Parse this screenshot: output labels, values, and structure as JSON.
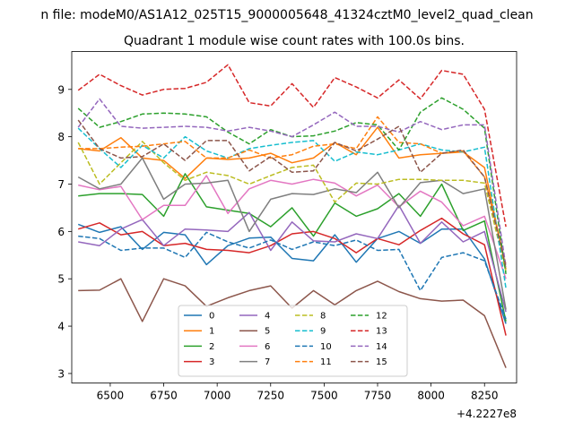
{
  "chart_data": {
    "type": "line",
    "suptitle": "n file: modeM0/AS1A12_025T15_9000005648_41324cztM0_level2_quad_clean",
    "title": "Quadrant 1 module wise count rates with 100.0s bins.",
    "xlabel": "",
    "ylabel": "",
    "x_offset_label": "+4.2227e8",
    "xlim": [
      6320,
      8400
    ],
    "ylim": [
      2.8,
      9.8
    ],
    "xticks": [
      6500,
      6750,
      7000,
      7250,
      7500,
      7750,
      8000,
      8250
    ],
    "yticks": [
      3,
      4,
      5,
      6,
      7,
      8,
      9
    ],
    "legend_position": "bottom-center",
    "x": [
      6350,
      6450,
      6550,
      6650,
      6750,
      6850,
      6950,
      7050,
      7150,
      7250,
      7350,
      7450,
      7550,
      7650,
      7750,
      7850,
      7950,
      8050,
      8150,
      8250,
      8350
    ],
    "series": [
      {
        "name": "0",
        "color": "#1f77b4",
        "dash": "solid",
        "values": [
          6.15,
          5.98,
          6.1,
          5.62,
          5.98,
          5.93,
          5.3,
          5.7,
          5.86,
          5.88,
          5.43,
          5.38,
          5.93,
          5.35,
          5.85,
          6.0,
          5.75,
          6.05,
          6.05,
          5.42,
          4.05
        ]
      },
      {
        "name": "1",
        "color": "#ff7f0e",
        "dash": "solid",
        "values": [
          7.75,
          7.7,
          7.98,
          7.55,
          7.5,
          7.12,
          7.55,
          7.52,
          7.55,
          7.65,
          7.45,
          7.55,
          7.88,
          7.62,
          8.2,
          7.55,
          7.62,
          7.65,
          7.68,
          7.35,
          5.2
        ]
      },
      {
        "name": "2",
        "color": "#2ca02c",
        "dash": "solid",
        "values": [
          6.75,
          6.8,
          6.8,
          6.78,
          6.32,
          7.22,
          6.52,
          6.45,
          6.38,
          6.1,
          6.5,
          5.9,
          6.6,
          6.32,
          6.48,
          6.8,
          6.32,
          7.0,
          6.02,
          6.22,
          4.1
        ]
      },
      {
        "name": "3",
        "color": "#d62728",
        "dash": "solid",
        "values": [
          6.05,
          6.18,
          5.93,
          6.0,
          5.7,
          5.75,
          5.62,
          5.6,
          5.55,
          5.7,
          5.95,
          6.0,
          5.85,
          5.55,
          5.85,
          5.72,
          6.02,
          6.28,
          5.95,
          5.72,
          3.8
        ]
      },
      {
        "name": "4",
        "color": "#9467bd",
        "dash": "solid",
        "values": [
          5.78,
          5.7,
          6.05,
          6.25,
          5.7,
          6.05,
          6.03,
          6.0,
          6.4,
          5.6,
          6.2,
          5.8,
          5.78,
          5.95,
          5.85,
          6.55,
          5.75,
          6.2,
          5.78,
          6.0,
          4.3
        ]
      },
      {
        "name": "5",
        "color": "#8c564b",
        "dash": "solid",
        "values": [
          4.75,
          4.76,
          5.0,
          4.1,
          5.0,
          4.85,
          4.42,
          4.6,
          4.75,
          4.85,
          4.38,
          4.75,
          4.45,
          4.75,
          4.95,
          4.73,
          4.58,
          4.53,
          4.55,
          4.22,
          3.12
        ]
      },
      {
        "name": "6",
        "color": "#e377c2",
        "dash": "solid",
        "values": [
          6.98,
          6.88,
          6.95,
          6.25,
          6.55,
          6.55,
          7.18,
          6.38,
          6.9,
          7.08,
          7.0,
          7.1,
          7.02,
          6.75,
          6.98,
          6.52,
          6.85,
          6.62,
          6.12,
          6.32,
          5.0
        ]
      },
      {
        "name": "7",
        "color": "#7f7f7f",
        "dash": "solid",
        "values": [
          7.15,
          6.9,
          7.0,
          7.55,
          6.68,
          7.0,
          7.02,
          7.08,
          6.0,
          6.68,
          6.8,
          6.78,
          6.9,
          6.82,
          7.25,
          6.5,
          7.03,
          7.08,
          6.8,
          6.9,
          4.35
        ]
      },
      {
        "name": "8",
        "color": "#bcbd22",
        "dash": "dashed",
        "values": [
          7.88,
          7.0,
          7.45,
          7.9,
          7.45,
          7.08,
          7.25,
          7.18,
          7.0,
          7.18,
          7.35,
          7.4,
          6.62,
          7.02,
          7.0,
          7.1,
          7.1,
          7.08,
          7.08,
          7.02,
          5.15
        ]
      },
      {
        "name": "9",
        "color": "#17becf",
        "dash": "dashed",
        "values": [
          8.18,
          7.75,
          7.35,
          7.82,
          7.55,
          8.0,
          7.7,
          7.55,
          7.75,
          7.82,
          7.88,
          7.92,
          7.48,
          7.68,
          7.62,
          7.72,
          7.85,
          7.72,
          7.68,
          7.78,
          4.8
        ]
      },
      {
        "name": "10",
        "color": "#1f77b4",
        "dash": "dashed",
        "values": [
          5.9,
          5.85,
          5.6,
          5.65,
          5.65,
          5.45,
          5.98,
          5.78,
          5.65,
          5.82,
          5.62,
          5.78,
          5.7,
          5.82,
          5.6,
          5.62,
          4.75,
          5.45,
          5.55,
          5.38,
          4.15
        ]
      },
      {
        "name": "11",
        "color": "#ff7f0e",
        "dash": "dashed",
        "values": [
          7.75,
          7.75,
          7.78,
          7.8,
          7.85,
          7.9,
          7.55,
          7.55,
          7.72,
          7.55,
          7.62,
          7.8,
          7.85,
          7.75,
          8.42,
          7.88,
          7.85,
          7.65,
          7.7,
          7.15,
          5.3
        ]
      },
      {
        "name": "12",
        "color": "#2ca02c",
        "dash": "dashed",
        "values": [
          8.6,
          8.2,
          8.32,
          8.48,
          8.5,
          8.48,
          8.42,
          8.1,
          7.85,
          8.15,
          8.0,
          8.02,
          8.12,
          8.3,
          8.25,
          7.72,
          8.52,
          8.82,
          8.58,
          8.18,
          5.1
        ]
      },
      {
        "name": "13",
        "color": "#d62728",
        "dash": "dashed",
        "values": [
          8.98,
          9.32,
          9.08,
          8.88,
          9.0,
          9.02,
          9.15,
          9.52,
          8.72,
          8.65,
          9.12,
          8.62,
          9.25,
          9.05,
          8.82,
          9.2,
          8.8,
          9.4,
          9.32,
          8.58,
          6.1
        ]
      },
      {
        "name": "14",
        "color": "#9467bd",
        "dash": "dashed",
        "values": [
          8.2,
          8.8,
          8.22,
          8.18,
          8.2,
          8.22,
          8.2,
          8.12,
          8.2,
          8.12,
          8.0,
          8.25,
          8.52,
          8.22,
          8.22,
          8.1,
          8.32,
          8.15,
          8.25,
          8.25,
          5.25
        ]
      },
      {
        "name": "15",
        "color": "#8c564b",
        "dash": "dashed",
        "values": [
          8.35,
          7.75,
          7.55,
          7.58,
          7.85,
          7.5,
          7.92,
          7.92,
          7.28,
          7.58,
          7.25,
          7.28,
          7.88,
          7.7,
          7.95,
          8.22,
          7.25,
          7.65,
          7.72,
          7.15,
          5.25
        ]
      }
    ]
  }
}
